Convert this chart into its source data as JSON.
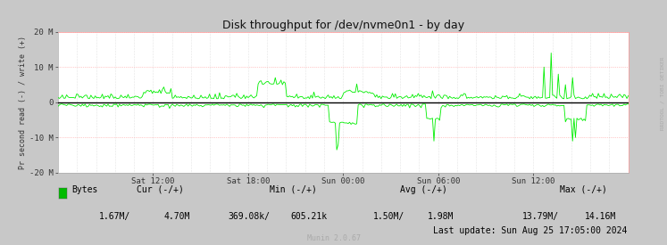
{
  "title": "Disk throughput for /dev/nvme0n1 - by day",
  "ylabel": "Pr second read (-) / write (+)",
  "ylim": [
    -20000000,
    20000000
  ],
  "yticks": [
    -20000000,
    -10000000,
    0,
    10000000,
    20000000
  ],
  "ytick_labels": [
    "-20 M",
    "-10 M",
    "0",
    "10 M",
    "20 M"
  ],
  "xtick_labels": [
    "Sat 12:00",
    "Sat 18:00",
    "Sun 00:00",
    "Sun 06:00",
    "Sun 12:00"
  ],
  "xtick_positions": [
    0.1667,
    0.3333,
    0.5,
    0.6667,
    0.8333
  ],
  "bg_color": "#c8c8c8",
  "plot_bg_color": "#ffffff",
  "grid_h_color": "#ff9999",
  "grid_v_color": "#cccccc",
  "line_color": "#00ee00",
  "zero_line_color": "#000000",
  "legend_label": "Bytes",
  "legend_color": "#00bb00",
  "footer_text": "Munin 2.0.67",
  "last_update": "Last update: Sun Aug 25 17:05:00 2024",
  "watermark": "RRDTOOL / TOBI OETIKER",
  "n_points": 400,
  "seed": 42,
  "cur_neg": "1.67M/",
  "cur_pos": "4.70M",
  "min_neg": "369.08k/",
  "min_pos": "605.21k",
  "avg_neg": "1.50M/",
  "avg_pos": "1.98M",
  "max_neg": "13.79M/",
  "max_pos": "14.16M"
}
